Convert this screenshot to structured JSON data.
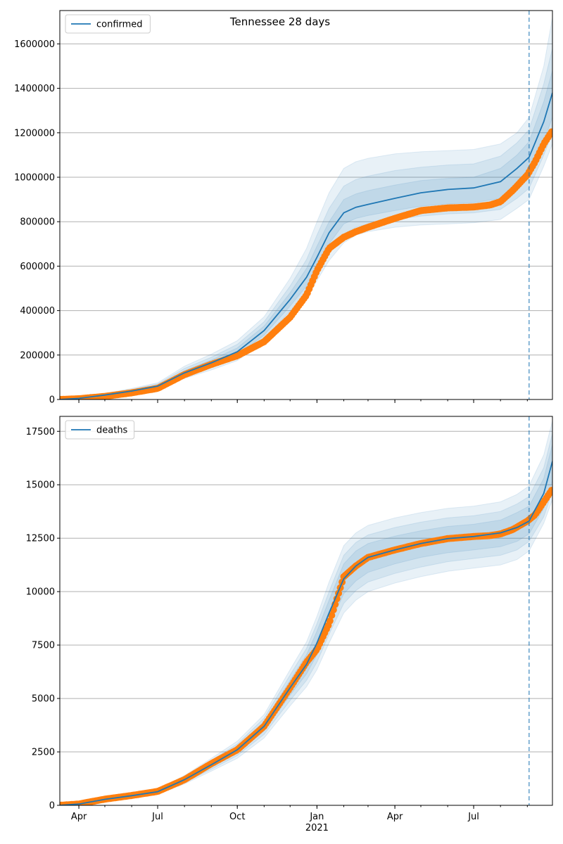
{
  "figure": {
    "title": "Tennessee 28 days"
  },
  "colors": {
    "model": "#1f77b4",
    "observed": "#ff7f0e",
    "band": "#1f77b4",
    "grid": "#b0b0b0",
    "forecast_line": "#1f77b4"
  },
  "chart_data": [
    {
      "type": "line",
      "legend": "confirmed",
      "legend_position": "top-left",
      "grid": "horizontal",
      "x_ticks": [
        {
          "date": "2020-04-01",
          "label": "Apr"
        },
        {
          "date": "2020-07-01",
          "label": "Jul"
        },
        {
          "date": "2020-10-01",
          "label": "Oct"
        },
        {
          "date": "2021-01-01",
          "label": "Jan"
        },
        {
          "date": "2021-04-01",
          "label": "Apr"
        },
        {
          "date": "2021-07-01",
          "label": "Jul"
        }
      ],
      "x_sub_label": "2021",
      "x_range": [
        "2020-03-10",
        "2021-09-30"
      ],
      "y_range": [
        0,
        1750000
      ],
      "y_ticks": [
        0,
        200000,
        400000,
        600000,
        800000,
        1000000,
        1200000,
        1400000,
        1600000
      ],
      "forecast_start": "2021-09-03",
      "model": {
        "dates": [
          "2020-03-10",
          "2020-04-01",
          "2020-05-01",
          "2020-06-01",
          "2020-07-01",
          "2020-08-01",
          "2020-09-01",
          "2020-10-01",
          "2020-11-01",
          "2020-12-01",
          "2020-12-20",
          "2021-01-01",
          "2021-01-15",
          "2021-02-01",
          "2021-02-15",
          "2021-03-01",
          "2021-04-01",
          "2021-05-01",
          "2021-06-01",
          "2021-07-01",
          "2021-08-01",
          "2021-08-20",
          "2021-09-03",
          "2021-09-20",
          "2021-09-30"
        ],
        "median": [
          0,
          5000,
          20000,
          38000,
          60000,
          120000,
          165000,
          215000,
          310000,
          450000,
          550000,
          640000,
          750000,
          840000,
          865000,
          878000,
          905000,
          930000,
          945000,
          952000,
          980000,
          1040000,
          1090000,
          1250000,
          1380000
        ],
        "band1_low": [
          0,
          4000,
          17000,
          34000,
          55000,
          110000,
          152000,
          198000,
          290000,
          420000,
          510000,
          600000,
          700000,
          790000,
          815000,
          828000,
          850000,
          870000,
          880000,
          885000,
          905000,
          955000,
          1000000,
          1160000,
          1270000
        ],
        "band1_high": [
          0,
          6000,
          23000,
          42000,
          65000,
          130000,
          178000,
          232000,
          330000,
          480000,
          590000,
          690000,
          800000,
          900000,
          925000,
          940000,
          965000,
          985000,
          995000,
          1000000,
          1040000,
          1100000,
          1160000,
          1340000,
          1480000
        ],
        "band2_low": [
          0,
          3500,
          15000,
          31000,
          51000,
          102000,
          142000,
          186000,
          274000,
          398000,
          480000,
          565000,
          660000,
          745000,
          775000,
          790000,
          810000,
          825000,
          835000,
          840000,
          855000,
          905000,
          950000,
          1100000,
          1200000
        ],
        "band2_high": [
          0,
          6500,
          25000,
          46000,
          70000,
          140000,
          190000,
          248000,
          350000,
          510000,
          630000,
          740000,
          860000,
          960000,
          990000,
          1005000,
          1030000,
          1045000,
          1055000,
          1060000,
          1095000,
          1155000,
          1215000,
          1420000,
          1580000
        ],
        "band3_low": [
          0,
          3000,
          13000,
          28000,
          47000,
          95000,
          133000,
          175000,
          258000,
          378000,
          455000,
          535000,
          625000,
          705000,
          740000,
          755000,
          775000,
          785000,
          790000,
          795000,
          810000,
          860000,
          900000,
          1050000,
          1150000
        ],
        "band3_high": [
          0,
          7000,
          27000,
          50000,
          75000,
          150000,
          204000,
          265000,
          372000,
          545000,
          680000,
          800000,
          930000,
          1040000,
          1070000,
          1085000,
          1105000,
          1115000,
          1120000,
          1125000,
          1150000,
          1200000,
          1270000,
          1500000,
          1720000
        ]
      },
      "observed": {
        "dates": [
          "2020-03-10",
          "2020-04-01",
          "2020-05-01",
          "2020-06-01",
          "2020-07-01",
          "2020-08-01",
          "2020-09-01",
          "2020-10-01",
          "2020-11-01",
          "2020-12-01",
          "2020-12-20",
          "2021-01-01",
          "2021-01-15",
          "2021-02-01",
          "2021-02-15",
          "2021-03-01",
          "2021-04-01",
          "2021-05-01",
          "2021-06-01",
          "2021-07-01",
          "2021-07-20",
          "2021-08-01",
          "2021-08-15",
          "2021-09-01",
          "2021-09-10",
          "2021-09-20",
          "2021-09-30"
        ],
        "values": [
          0,
          3500,
          14000,
          30000,
          50000,
          112000,
          158000,
          197000,
          260000,
          370000,
          470000,
          580000,
          680000,
          730000,
          755000,
          775000,
          815000,
          850000,
          862000,
          866000,
          875000,
          890000,
          940000,
          1010000,
          1070000,
          1150000,
          1210000
        ]
      }
    },
    {
      "type": "line",
      "legend": "deaths",
      "legend_position": "top-left",
      "grid": "horizontal",
      "x_ticks": [
        {
          "date": "2020-04-01",
          "label": "Apr"
        },
        {
          "date": "2020-07-01",
          "label": "Jul"
        },
        {
          "date": "2020-10-01",
          "label": "Oct"
        },
        {
          "date": "2021-01-01",
          "label": "Jan"
        },
        {
          "date": "2021-04-01",
          "label": "Apr"
        },
        {
          "date": "2021-07-01",
          "label": "Jul"
        }
      ],
      "x_sub_label": "2021",
      "x_range": [
        "2020-03-10",
        "2021-09-30"
      ],
      "y_range": [
        0,
        18200
      ],
      "y_ticks": [
        0,
        2500,
        5000,
        7500,
        10000,
        12500,
        15000,
        17500
      ],
      "forecast_start": "2021-09-03",
      "model": {
        "dates": [
          "2020-03-10",
          "2020-04-01",
          "2020-05-01",
          "2020-06-01",
          "2020-07-01",
          "2020-08-01",
          "2020-09-01",
          "2020-10-01",
          "2020-11-01",
          "2020-12-01",
          "2020-12-20",
          "2021-01-01",
          "2021-01-15",
          "2021-02-01",
          "2021-02-15",
          "2021-03-01",
          "2021-04-01",
          "2021-05-01",
          "2021-06-01",
          "2021-07-01",
          "2021-08-01",
          "2021-08-20",
          "2021-09-03",
          "2021-09-20",
          "2021-09-30"
        ],
        "median": [
          0,
          60,
          280,
          450,
          640,
          1200,
          1900,
          2600,
          3700,
          5500,
          6600,
          7600,
          9000,
          10600,
          11200,
          11600,
          11950,
          12250,
          12480,
          12580,
          12750,
          13000,
          13300,
          14600,
          16100
        ],
        "band1_low": [
          0,
          50,
          250,
          410,
          590,
          1120,
          1780,
          2450,
          3480,
          5150,
          6150,
          7050,
          8400,
          9900,
          10500,
          10900,
          11300,
          11600,
          11820,
          11950,
          12100,
          12350,
          12700,
          13900,
          15200
        ],
        "band1_high": [
          0,
          70,
          310,
          490,
          690,
          1280,
          2020,
          2750,
          3920,
          5850,
          7050,
          8150,
          9600,
          11300,
          11900,
          12250,
          12600,
          12850,
          13050,
          13150,
          13350,
          13700,
          14000,
          15300,
          16900
        ],
        "band2_low": [
          0,
          45,
          230,
          380,
          555,
          1060,
          1690,
          2330,
          3320,
          4900,
          5850,
          6700,
          8000,
          9450,
          10050,
          10450,
          10850,
          11150,
          11400,
          11550,
          11700,
          11950,
          12350,
          13500,
          14700
        ],
        "band2_high": [
          0,
          75,
          330,
          520,
          725,
          1340,
          2110,
          2870,
          4080,
          6100,
          7350,
          8500,
          10000,
          11700,
          12300,
          12650,
          13000,
          13250,
          13450,
          13550,
          13750,
          14100,
          14450,
          15800,
          17400
        ],
        "band3_low": [
          0,
          40,
          210,
          350,
          520,
          1000,
          1600,
          2200,
          3150,
          4650,
          5550,
          6350,
          7600,
          9000,
          9600,
          10000,
          10400,
          10700,
          10950,
          11100,
          11250,
          11500,
          11900,
          13200,
          14300
        ],
        "band3_high": [
          0,
          80,
          350,
          550,
          760,
          1400,
          2200,
          3000,
          4250,
          6350,
          7650,
          8850,
          10450,
          12150,
          12750,
          13100,
          13450,
          13700,
          13900,
          14000,
          14200,
          14550,
          14950,
          16400,
          18000
        ]
      },
      "observed": {
        "dates": [
          "2020-03-10",
          "2020-04-01",
          "2020-05-01",
          "2020-06-01",
          "2020-07-01",
          "2020-08-01",
          "2020-09-01",
          "2020-10-01",
          "2020-11-01",
          "2020-12-01",
          "2020-12-20",
          "2021-01-01",
          "2021-01-15",
          "2021-02-01",
          "2021-02-15",
          "2021-03-01",
          "2021-04-01",
          "2021-05-01",
          "2021-06-01",
          "2021-07-01",
          "2021-07-20",
          "2021-08-01",
          "2021-08-15",
          "2021-09-01",
          "2021-09-10",
          "2021-09-20",
          "2021-09-30"
        ],
        "values": [
          0,
          60,
          290,
          460,
          650,
          1200,
          1950,
          2600,
          3700,
          5500,
          6700,
          7300,
          8500,
          10700,
          11200,
          11600,
          11950,
          12250,
          12480,
          12580,
          12620,
          12700,
          12900,
          13300,
          13600,
          14200,
          14800
        ]
      }
    }
  ]
}
